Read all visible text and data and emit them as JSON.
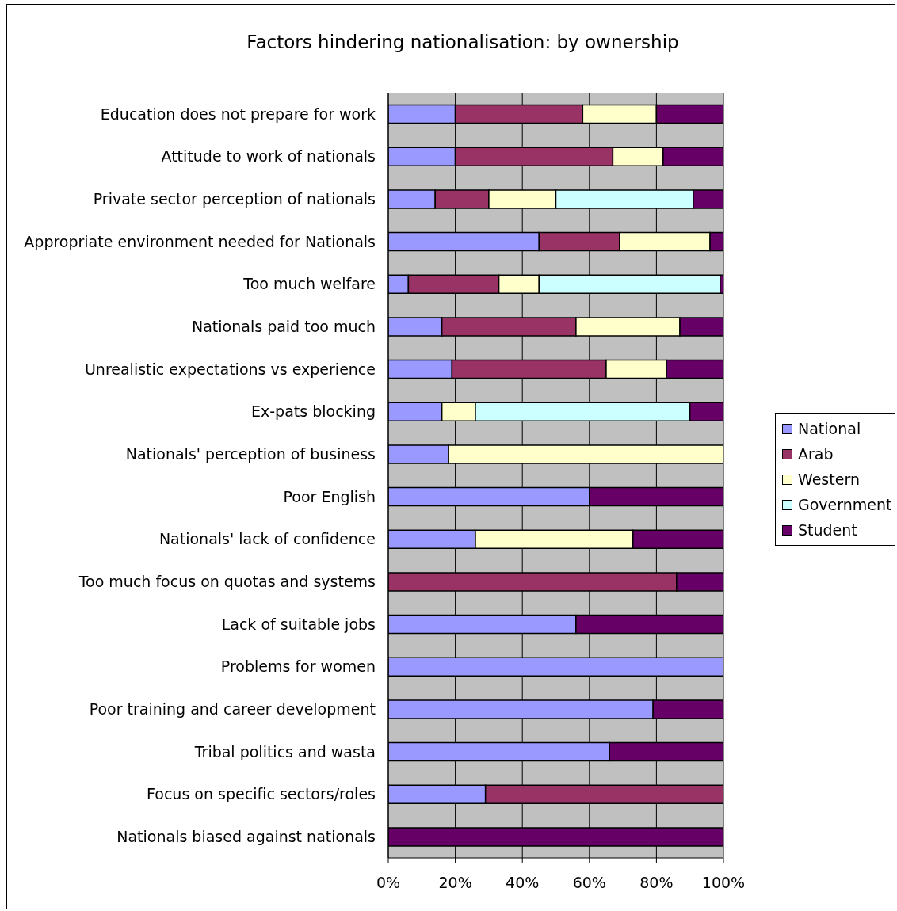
{
  "chart_data": {
    "type": "bar",
    "orientation": "horizontal",
    "stacked": true,
    "title": "Factors hindering nationalisation: by ownership",
    "categories": [
      "Education does not prepare for work",
      "Attitude to work of nationals",
      "Private sector perception of nationals",
      "Appropriate environment needed for Nationals",
      "Too much welfare",
      "Nationals paid too much",
      "Unrealistic expectations vs experience",
      "Ex-pats blocking",
      "Nationals' perception of business",
      "Poor English",
      "Nationals' lack of confidence",
      "Too much focus on quotas and systems",
      "Lack of suitable jobs",
      "Problems for women",
      "Poor training and career development",
      "Tribal politics and wasta",
      "Focus on specific sectors/roles",
      "Nationals biased against nationals"
    ],
    "series": [
      {
        "name": "National",
        "color": "#9999ff",
        "values": [
          20,
          20,
          14,
          45,
          6,
          16,
          19,
          16,
          18,
          60,
          26,
          0,
          56,
          100,
          79,
          66,
          29,
          0
        ]
      },
      {
        "name": "Arab",
        "color": "#993366",
        "values": [
          38,
          47,
          16,
          24,
          27,
          40,
          46,
          0,
          0,
          0,
          0,
          86,
          0,
          0,
          0,
          0,
          71,
          0
        ]
      },
      {
        "name": "Western",
        "color": "#ffffcc",
        "values": [
          22,
          15,
          20,
          27,
          12,
          31,
          18,
          10,
          82,
          0,
          47,
          0,
          0,
          0,
          0,
          0,
          0,
          0
        ]
      },
      {
        "name": "Government",
        "color": "#ccffff",
        "values": [
          0,
          0,
          41,
          0,
          54,
          0,
          0,
          64,
          0,
          0,
          0,
          0,
          0,
          0,
          0,
          0,
          0,
          0
        ]
      },
      {
        "name": "Student",
        "color": "#660066",
        "values": [
          20,
          18,
          9,
          4,
          1,
          13,
          17,
          10,
          0,
          40,
          27,
          14,
          44,
          0,
          21,
          34,
          0,
          100
        ]
      }
    ],
    "xlim": [
      0,
      100
    ],
    "xticks": [
      {
        "value": 0,
        "label": "0%"
      },
      {
        "value": 20,
        "label": "20%"
      },
      {
        "value": 40,
        "label": "40%"
      },
      {
        "value": 60,
        "label": "60%"
      },
      {
        "value": 80,
        "label": "80%"
      },
      {
        "value": 100,
        "label": "100%"
      }
    ],
    "grid": "x",
    "legend": "right"
  }
}
